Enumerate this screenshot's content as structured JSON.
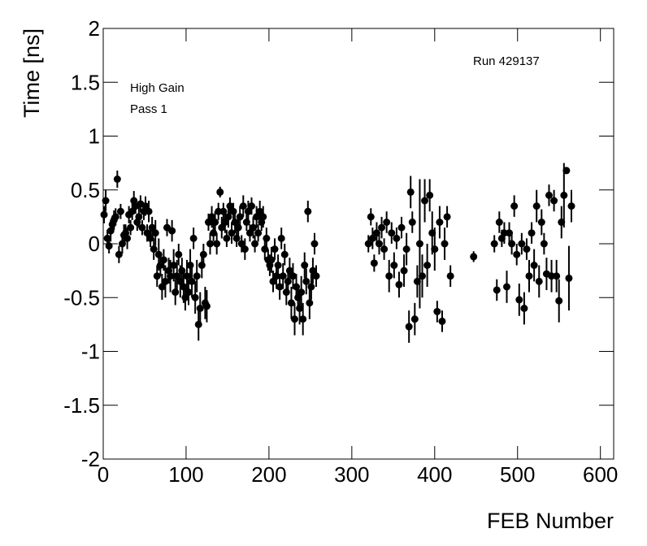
{
  "chart_data": {
    "type": "errorbar-scatter",
    "x_label": "FEB Number",
    "y_label": "Time [ns]",
    "annotations": [
      "Run 429137",
      "High Gain",
      "Pass 1"
    ],
    "color": "#000000",
    "xlim": [
      0,
      616
    ],
    "ylim": [
      -2,
      2
    ],
    "xticks": [
      0,
      100,
      200,
      300,
      400,
      500,
      600
    ],
    "yticks": [
      -2,
      -1.5,
      -1,
      -0.5,
      0,
      0.5,
      1,
      1.5,
      2
    ],
    "x": [
      1,
      3,
      5,
      7,
      9,
      11,
      13,
      15,
      17,
      19,
      21,
      23,
      25,
      27,
      29,
      31,
      33,
      35,
      37,
      39,
      41,
      43,
      45,
      47,
      49,
      51,
      53,
      55,
      57,
      59,
      61,
      63,
      65,
      67,
      69,
      71,
      73,
      75,
      77,
      79,
      81,
      83,
      85,
      87,
      89,
      91,
      93,
      95,
      97,
      99,
      101,
      103,
      105,
      107,
      109,
      111,
      113,
      115,
      117,
      119,
      121,
      123,
      125,
      127,
      129,
      131,
      133,
      135,
      137,
      139,
      141,
      143,
      145,
      147,
      149,
      151,
      153,
      155,
      157,
      159,
      161,
      163,
      165,
      167,
      169,
      171,
      173,
      175,
      177,
      179,
      181,
      183,
      185,
      187,
      189,
      191,
      193,
      195,
      197,
      199,
      201,
      203,
      205,
      207,
      209,
      211,
      213,
      215,
      217,
      219,
      221,
      223,
      225,
      227,
      229,
      231,
      233,
      235,
      237,
      239,
      241,
      243,
      245,
      247,
      249,
      251,
      253,
      255,
      257,
      320,
      323,
      325,
      327,
      330,
      333,
      336,
      339,
      342,
      345,
      348,
      351,
      354,
      357,
      360,
      363,
      366,
      369,
      371,
      373,
      376,
      379,
      382,
      385,
      388,
      391,
      394,
      397,
      400,
      403,
      406,
      409,
      412,
      415,
      419,
      447,
      472,
      475,
      478,
      481,
      484,
      487,
      490,
      493,
      496,
      499,
      502,
      505,
      508,
      511,
      514,
      517,
      520,
      523,
      526,
      529,
      532,
      535,
      538,
      541,
      544,
      547,
      550,
      553,
      556,
      559,
      562,
      565
    ],
    "values": [
      0.27,
      0.4,
      0.05,
      -0.02,
      0.12,
      0.18,
      0.22,
      0.25,
      0.6,
      -0.1,
      0.3,
      0.0,
      0.08,
      0.1,
      0.05,
      0.27,
      0.15,
      0.3,
      0.4,
      0.35,
      0.2,
      0.25,
      0.37,
      0.15,
      0.3,
      0.35,
      0.1,
      0.3,
      0.05,
      0.15,
      -0.05,
      0.1,
      -0.3,
      -0.1,
      -0.2,
      -0.4,
      -0.15,
      -0.35,
      0.15,
      -0.25,
      -0.3,
      0.12,
      -0.2,
      -0.45,
      -0.3,
      -0.1,
      -0.35,
      -0.25,
      -0.4,
      -0.5,
      -0.3,
      -0.45,
      -0.2,
      -0.35,
      0.05,
      -0.5,
      -0.3,
      -0.75,
      -0.6,
      -0.2,
      -0.1,
      -0.55,
      -0.58,
      0.2,
      0.0,
      0.25,
      0.1,
      0.2,
      0.0,
      0.3,
      0.48,
      0.15,
      0.3,
      0.2,
      0.05,
      0.25,
      0.35,
      0.1,
      0.3,
      0.2,
      0.05,
      0.15,
      0.25,
      0.0,
      0.35,
      -0.05,
      0.2,
      0.3,
      0.1,
      0.35,
      0.15,
      0.0,
      0.25,
      0.1,
      0.3,
      0.2,
      0.25,
      -0.05,
      0.05,
      -0.15,
      -0.2,
      -0.15,
      -0.35,
      -0.05,
      -0.3,
      -0.2,
      -0.4,
      0.05,
      -0.3,
      -0.1,
      -0.45,
      -0.35,
      -0.25,
      -0.55,
      -0.3,
      -0.7,
      -0.4,
      -0.5,
      -0.6,
      -0.45,
      -0.7,
      -0.2,
      -0.35,
      0.3,
      -0.55,
      -0.4,
      -0.25,
      0.0,
      -0.3,
      0.0,
      0.25,
      0.05,
      -0.18,
      0.1,
      0.0,
      0.15,
      -0.05,
      0.2,
      -0.3,
      0.1,
      -0.2,
      0.05,
      -0.38,
      0.15,
      -0.25,
      -0.05,
      -0.77,
      0.48,
      0.2,
      -0.7,
      -0.35,
      0.0,
      -0.3,
      0.4,
      -0.2,
      0.45,
      0.1,
      -0.05,
      -0.63,
      0.2,
      -0.72,
      0.0,
      0.25,
      -0.3,
      -0.12,
      0.0,
      -0.43,
      0.2,
      0.05,
      0.1,
      -0.4,
      0.1,
      0.0,
      0.35,
      -0.1,
      -0.52,
      0.0,
      -0.6,
      -0.05,
      -0.3,
      0.1,
      -0.2,
      0.35,
      -0.35,
      0.2,
      0.0,
      -0.28,
      0.45,
      -0.3,
      0.4,
      -0.3,
      -0.53,
      0.2,
      0.45,
      0.68,
      -0.32,
      0.35
    ],
    "errors": [
      0.08,
      0.1,
      0.08,
      0.07,
      0.1,
      0.08,
      0.09,
      0.08,
      0.08,
      0.08,
      0.07,
      0.09,
      0.1,
      0.08,
      0.1,
      0.08,
      0.07,
      0.08,
      0.09,
      0.07,
      0.08,
      0.1,
      0.08,
      0.07,
      0.08,
      0.09,
      0.08,
      0.1,
      0.08,
      0.1,
      0.1,
      0.12,
      0.1,
      0.15,
      0.1,
      0.12,
      0.1,
      0.15,
      0.08,
      0.12,
      0.15,
      0.1,
      0.15,
      0.12,
      0.15,
      0.1,
      0.15,
      0.12,
      0.15,
      0.12,
      0.15,
      0.12,
      0.15,
      0.15,
      0.1,
      0.15,
      0.15,
      0.15,
      0.15,
      0.12,
      0.1,
      0.15,
      0.15,
      0.08,
      0.1,
      0.1,
      0.08,
      0.1,
      0.1,
      0.08,
      0.05,
      0.1,
      0.08,
      0.1,
      0.08,
      0.1,
      0.08,
      0.1,
      0.08,
      0.1,
      0.08,
      0.08,
      0.1,
      0.08,
      0.1,
      0.1,
      0.08,
      0.1,
      0.08,
      0.08,
      0.1,
      0.08,
      0.1,
      0.08,
      0.1,
      0.08,
      0.1,
      0.1,
      0.1,
      0.1,
      0.1,
      0.12,
      0.1,
      0.1,
      0.12,
      0.1,
      0.12,
      0.1,
      0.12,
      0.1,
      0.12,
      0.12,
      0.12,
      0.15,
      0.12,
      0.15,
      0.12,
      0.12,
      0.15,
      0.15,
      0.15,
      0.12,
      0.12,
      0.1,
      0.15,
      0.12,
      0.12,
      0.1,
      0.1,
      0.08,
      0.08,
      0.1,
      0.08,
      0.1,
      0.1,
      0.1,
      0.1,
      0.1,
      0.15,
      0.1,
      0.12,
      0.1,
      0.12,
      0.1,
      0.15,
      0.15,
      0.15,
      0.15,
      0.1,
      0.15,
      0.15,
      0.6,
      0.2,
      0.2,
      0.2,
      0.15,
      0.2,
      0.2,
      0.1,
      0.15,
      0.1,
      0.15,
      0.1,
      0.1,
      0.05,
      0.08,
      0.1,
      0.1,
      0.08,
      0.1,
      0.15,
      0.1,
      0.1,
      0.1,
      0.1,
      0.15,
      0.1,
      0.15,
      0.1,
      0.15,
      0.1,
      0.15,
      0.15,
      0.15,
      0.12,
      0.1,
      0.15,
      0.1,
      0.15,
      0.1,
      0.15,
      0.2,
      0.15,
      0.3,
      0.03,
      0.3,
      0.15
    ]
  }
}
